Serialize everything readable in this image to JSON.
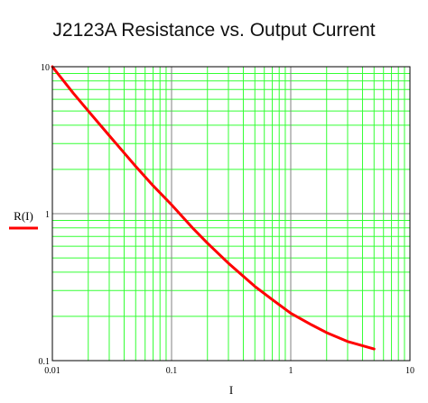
{
  "chart_data": {
    "type": "line",
    "title": "J2123A Resistance vs. Output Current",
    "xlabel": "I",
    "ylabel": "R(I)",
    "x_scale": "log",
    "y_scale": "log",
    "xlim": [
      0.01,
      10
    ],
    "ylim": [
      0.1,
      10
    ],
    "grid": true,
    "x_ticks": [
      "0.01",
      "0.1",
      "1",
      "10"
    ],
    "y_ticks": [
      "0.1",
      "1",
      "10"
    ],
    "series": [
      {
        "name": "R(I)",
        "color": "#ff0000",
        "x": [
          0.01,
          0.015,
          0.02,
          0.03,
          0.05,
          0.07,
          0.1,
          0.15,
          0.2,
          0.3,
          0.5,
          0.7,
          1,
          1.5,
          2,
          3,
          5
        ],
        "y": [
          10,
          6.6,
          5.0,
          3.4,
          2.1,
          1.55,
          1.15,
          0.8,
          0.63,
          0.46,
          0.32,
          0.26,
          0.21,
          0.175,
          0.155,
          0.135,
          0.12
        ]
      }
    ]
  },
  "colors": {
    "grid": "#33ff33",
    "major_grid": "#808080",
    "curve": "#ff0000",
    "frame": "#000000"
  }
}
